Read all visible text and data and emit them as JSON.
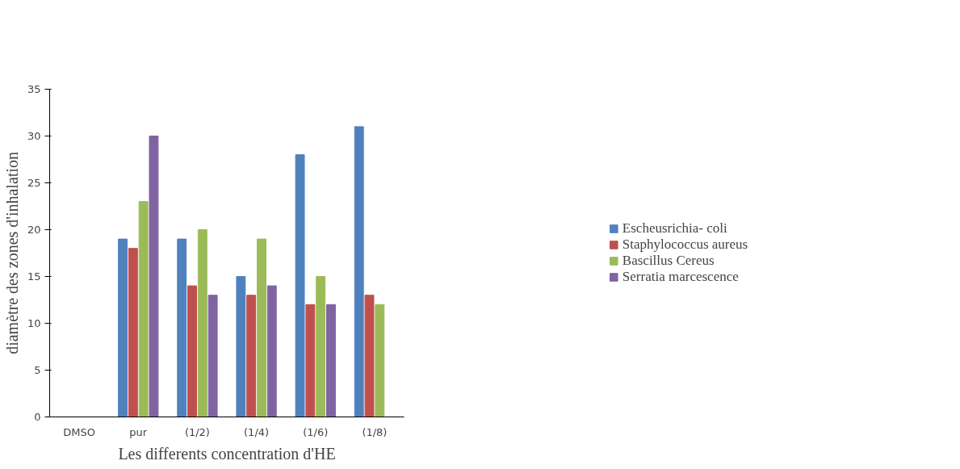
{
  "chart_data": {
    "type": "bar",
    "xlabel": "Les differents concentration d'HE",
    "ylabel": "diamètre des zones d'inhalation",
    "categories": [
      "DMSO",
      "pur",
      "(1/2)",
      "(1/4)",
      "(1/6)",
      "(1/8)"
    ],
    "series": [
      {
        "name": "Escheusrichia- coli",
        "color": "#4f81bd",
        "values": [
          0,
          19,
          19,
          15,
          28,
          31
        ]
      },
      {
        "name": "Staphylococcus aureus",
        "color": "#c0504d",
        "values": [
          0,
          18,
          14,
          13,
          12,
          13
        ]
      },
      {
        "name": "Bascillus Cereus",
        "color": "#9bbb59",
        "values": [
          0,
          23,
          20,
          19,
          15,
          12
        ]
      },
      {
        "name": "Serratia marcescence",
        "color": "#8064a2",
        "values": [
          0,
          30,
          13,
          14,
          12,
          0
        ]
      }
    ],
    "ylim": [
      0,
      35
    ],
    "yticks": [
      0,
      5,
      10,
      15,
      20,
      25,
      30,
      35
    ],
    "grid": false,
    "legend": "right"
  }
}
